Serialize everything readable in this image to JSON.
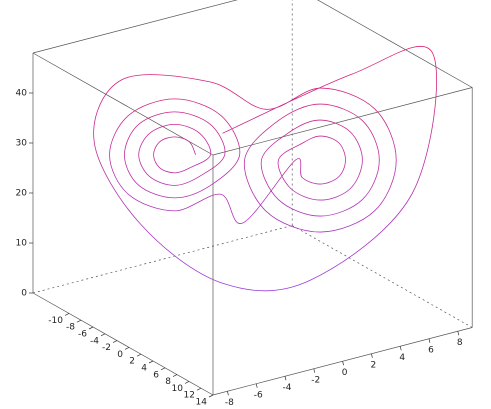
{
  "chart_data": {
    "type": "line3d",
    "xlim": [
      -16,
      14
    ],
    "ylim": [
      -9,
      9
    ],
    "zlim": [
      0,
      48
    ],
    "xticks": [
      -10,
      -8,
      -6,
      -4,
      -2,
      0,
      2,
      4,
      6,
      8,
      10,
      12,
      14
    ],
    "yticks": [
      -8,
      -6,
      -4,
      -2,
      0,
      2,
      4,
      6,
      8
    ],
    "zticks": [
      0,
      10,
      20,
      30,
      40
    ],
    "colormap": [
      "#e0206e",
      "#9440e4"
    ],
    "series": [
      {
        "color": "#c02a9c",
        "x": [
          -8.1,
          -8.4,
          -9.2,
          -10.0,
          -10.3,
          -10.0,
          -9.2,
          -8.4,
          -7.3,
          -7.9,
          -9.2,
          -10.5,
          -11.1,
          -10.5,
          -9.2,
          -7.9,
          -6.6,
          -7.3,
          -9.2,
          -11.1,
          -11.8,
          -11.1,
          -9.2,
          -7.3,
          -5.8,
          -6.8,
          -9.2,
          -11.6,
          -12.6,
          -11.6,
          -9.2,
          -6.8,
          -5.0,
          -1.8,
          -1.4,
          -0.5,
          0.4,
          0.8,
          0.4,
          -0.5,
          -1.4,
          -2.7,
          -2.1,
          -0.5,
          1.1,
          1.7,
          1.1,
          -0.5,
          -2.1,
          -3.6,
          -2.7,
          -0.5,
          1.7,
          2.6,
          1.7,
          -0.5,
          -2.7,
          -4.5,
          -3.3,
          -0.5,
          2.3,
          3.5,
          2.3,
          -0.5,
          -3.3,
          -7,
          -12,
          -13,
          -10,
          -6,
          -1,
          4,
          5,
          1,
          -6
        ],
        "y": [
          -1.0,
          -1.3,
          -2,
          -2.7,
          -3,
          -2.7,
          -2,
          -1.3,
          -0.3,
          -0.8,
          -2,
          -3.2,
          -3.7,
          -3.2,
          -2,
          -0.8,
          0.4,
          -0.3,
          -2,
          -3.7,
          -4.4,
          -3.7,
          -2,
          -0.3,
          1.1,
          0.2,
          -2,
          -4.2,
          -5.1,
          -4.2,
          -2,
          0.2,
          1,
          3.3,
          3.6,
          4.5,
          5.4,
          5.7,
          5.4,
          4.5,
          3.6,
          2.5,
          3.1,
          4.5,
          5.9,
          6.5,
          5.9,
          4.5,
          3.1,
          1.7,
          2.5,
          4.5,
          6.5,
          7.3,
          6.5,
          4.5,
          2.5,
          0.9,
          1.9,
          4.5,
          7.1,
          8.1,
          7.1,
          4.5,
          1.9,
          -0.5,
          -4.5,
          -6,
          -4,
          0,
          4,
          9,
          10,
          6,
          0
        ],
        "z": [
          27,
          29.6,
          30.6,
          29.6,
          27,
          24.4,
          23.4,
          24.4,
          27,
          31.3,
          33.1,
          31.3,
          27,
          22.7,
          20.9,
          22.7,
          27,
          33.1,
          35.6,
          33.1,
          27,
          20.9,
          18.4,
          20.9,
          27,
          34.9,
          38.2,
          34.9,
          27,
          19.1,
          15.8,
          19.1,
          14,
          27,
          23.6,
          22.2,
          23.6,
          27,
          30.4,
          31.8,
          30.4,
          27,
          21.3,
          19,
          21.3,
          27,
          32.7,
          35,
          32.7,
          27,
          19.1,
          15.8,
          19.1,
          27,
          34.9,
          38.2,
          34.9,
          27,
          16.8,
          12.6,
          16.8,
          27,
          37.2,
          41.4,
          37.2,
          42,
          42,
          30,
          14,
          2,
          3,
          20,
          48,
          44,
          32
        ]
      }
    ]
  }
}
